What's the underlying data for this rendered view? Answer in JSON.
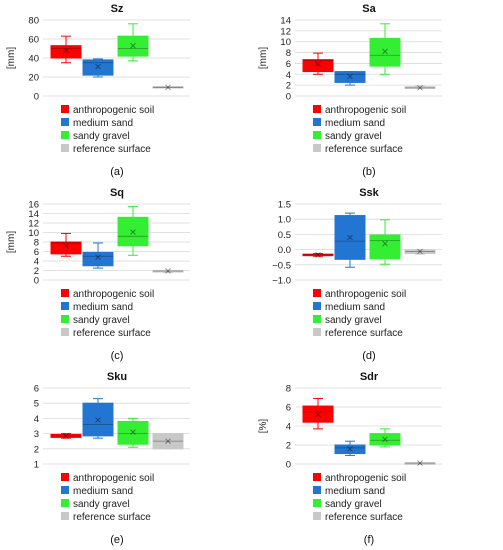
{
  "chart_data": [
    {
      "type": "box",
      "title": "Sz",
      "ylabel": "[mm]",
      "ylim": [
        0,
        80
      ],
      "yticks": [
        "0",
        "20",
        "40",
        "60",
        "80"
      ],
      "caption": "(a)",
      "series": [
        {
          "name": "anthropogenic soil",
          "color": "#ff0000",
          "min": 35,
          "q1": 40,
          "median": 50,
          "q3": 53,
          "max": 63,
          "mean": 48
        },
        {
          "name": "medium sand",
          "color": "#2276d2",
          "min": 20,
          "q1": 22,
          "median": 35,
          "q3": 38,
          "max": 39,
          "mean": 31
        },
        {
          "name": "sandy gravel",
          "color": "#33ee33",
          "min": 37,
          "q1": 42,
          "median": 50,
          "q3": 63,
          "max": 76,
          "mean": 53
        },
        {
          "name": "reference surface",
          "color": "#c8c8c8",
          "min": 8.5,
          "q1": 9,
          "median": 9,
          "q3": 10,
          "max": 10,
          "mean": 9.2
        }
      ]
    },
    {
      "type": "box",
      "title": "Sa",
      "ylabel": "[mm]",
      "ylim": [
        0,
        14
      ],
      "yticks": [
        "0",
        "2",
        "4",
        "6",
        "8",
        "10",
        "12",
        "14"
      ],
      "caption": "(b)",
      "series": [
        {
          "name": "anthropogenic soil",
          "color": "#ff0000",
          "min": 4,
          "q1": 4.5,
          "median": 6.5,
          "q3": 6.7,
          "max": 7.9,
          "mean": 5.9
        },
        {
          "name": "medium sand",
          "color": "#2276d2",
          "min": 2,
          "q1": 2.5,
          "median": 4,
          "q3": 4.5,
          "max": 4.5,
          "mean": 3.6
        },
        {
          "name": "sandy gravel",
          "color": "#33ee33",
          "min": 4,
          "q1": 5.5,
          "median": 7.5,
          "q3": 10.6,
          "max": 13.3,
          "mean": 8.2
        },
        {
          "name": "reference surface",
          "color": "#c8c8c8",
          "min": 1.4,
          "q1": 1.4,
          "median": 1.5,
          "q3": 1.7,
          "max": 1.8,
          "mean": 1.5
        }
      ]
    },
    {
      "type": "box",
      "title": "Sq",
      "ylabel": "[mm]",
      "ylim": [
        0,
        16
      ],
      "yticks": [
        "0",
        "2",
        "4",
        "6",
        "8",
        "10",
        "12",
        "14",
        "16"
      ],
      "caption": "(c)",
      "series": [
        {
          "name": "anthropogenic soil",
          "color": "#ff0000",
          "min": 5,
          "q1": 5.5,
          "median": 7.8,
          "q3": 8,
          "max": 9.8,
          "mean": 7.2
        },
        {
          "name": "medium sand",
          "color": "#2276d2",
          "min": 2.5,
          "q1": 3,
          "median": 5,
          "q3": 5.8,
          "max": 7.8,
          "mean": 4.8
        },
        {
          "name": "sandy gravel",
          "color": "#33ee33",
          "min": 5.2,
          "q1": 7.2,
          "median": 9.2,
          "q3": 13.2,
          "max": 15.5,
          "mean": 10.1
        },
        {
          "name": "reference surface",
          "color": "#c8c8c8",
          "min": 1.6,
          "q1": 1.7,
          "median": 1.9,
          "q3": 2,
          "max": 2,
          "mean": 1.9
        }
      ]
    },
    {
      "type": "box",
      "title": "Ssk",
      "ylabel": "",
      "ylim": [
        -1,
        1.5
      ],
      "yticks": [
        "1.5",
        "1.0",
        "0.5",
        "0.0",
        "−0.5",
        "−1.0"
      ],
      "ytick_values": [
        1.5,
        1.0,
        0.5,
        0.0,
        -0.5,
        -1.0
      ],
      "caption": "(d)",
      "series": [
        {
          "name": "anthropogenic soil",
          "color": "#ff0000",
          "min": -0.22,
          "q1": -0.2,
          "median": -0.17,
          "q3": -0.15,
          "max": -0.13,
          "mean": -0.17
        },
        {
          "name": "medium sand",
          "color": "#2276d2",
          "min": -0.58,
          "q1": -0.32,
          "median": 0.28,
          "q3": 1.12,
          "max": 1.2,
          "mean": 0.4
        },
        {
          "name": "sandy gravel",
          "color": "#33ee33",
          "min": -0.48,
          "q1": -0.3,
          "median": 0.3,
          "q3": 0.48,
          "max": 0.98,
          "mean": 0.2
        },
        {
          "name": "reference surface",
          "color": "#c8c8c8",
          "min": -0.15,
          "q1": -0.13,
          "median": -0.06,
          "q3": -0.01,
          "max": 0,
          "mean": -0.06
        }
      ]
    },
    {
      "type": "box",
      "title": "Sku",
      "ylabel": "",
      "ylim": [
        1,
        6
      ],
      "yticks": [
        "1",
        "2",
        "3",
        "4",
        "5",
        "6"
      ],
      "caption": "(e)",
      "series": [
        {
          "name": "anthropogenic soil",
          "color": "#ff0000",
          "min": 2.7,
          "q1": 2.75,
          "median": 2.85,
          "q3": 2.95,
          "max": 3,
          "mean": 2.85
        },
        {
          "name": "medium sand",
          "color": "#2276d2",
          "min": 2.7,
          "q1": 2.85,
          "median": 3.6,
          "q3": 5,
          "max": 5.3,
          "mean": 3.9
        },
        {
          "name": "sandy gravel",
          "color": "#33ee33",
          "min": 2.1,
          "q1": 2.3,
          "median": 3,
          "q3": 3.8,
          "max": 4,
          "mean": 3.1
        },
        {
          "name": "reference surface",
          "color": "#c8c8c8",
          "min": 2,
          "q1": 2,
          "median": 2.5,
          "q3": 3,
          "max": 3,
          "mean": 2.5
        }
      ]
    },
    {
      "type": "box",
      "title": "Sdr",
      "ylabel": "[%]",
      "ylim": [
        0,
        8
      ],
      "yticks": [
        "0",
        "2",
        "4",
        "6",
        "8"
      ],
      "caption": "(f)",
      "series": [
        {
          "name": "anthropogenic soil",
          "color": "#ff0000",
          "min": 3.7,
          "q1": 4.4,
          "median": 5.5,
          "q3": 6.1,
          "max": 6.9,
          "mean": 5.2
        },
        {
          "name": "medium sand",
          "color": "#2276d2",
          "min": 0.9,
          "q1": 1.1,
          "median": 1.7,
          "q3": 2,
          "max": 2.4,
          "mean": 1.6
        },
        {
          "name": "sandy gravel",
          "color": "#33ee33",
          "min": 1.8,
          "q1": 2,
          "median": 2.5,
          "q3": 3.2,
          "max": 3.7,
          "mean": 2.6
        },
        {
          "name": "reference surface",
          "color": "#c8c8c8",
          "min": 0.08,
          "q1": 0.08,
          "median": 0.1,
          "q3": 0.12,
          "max": 0.12,
          "mean": 0.1
        }
      ]
    }
  ]
}
